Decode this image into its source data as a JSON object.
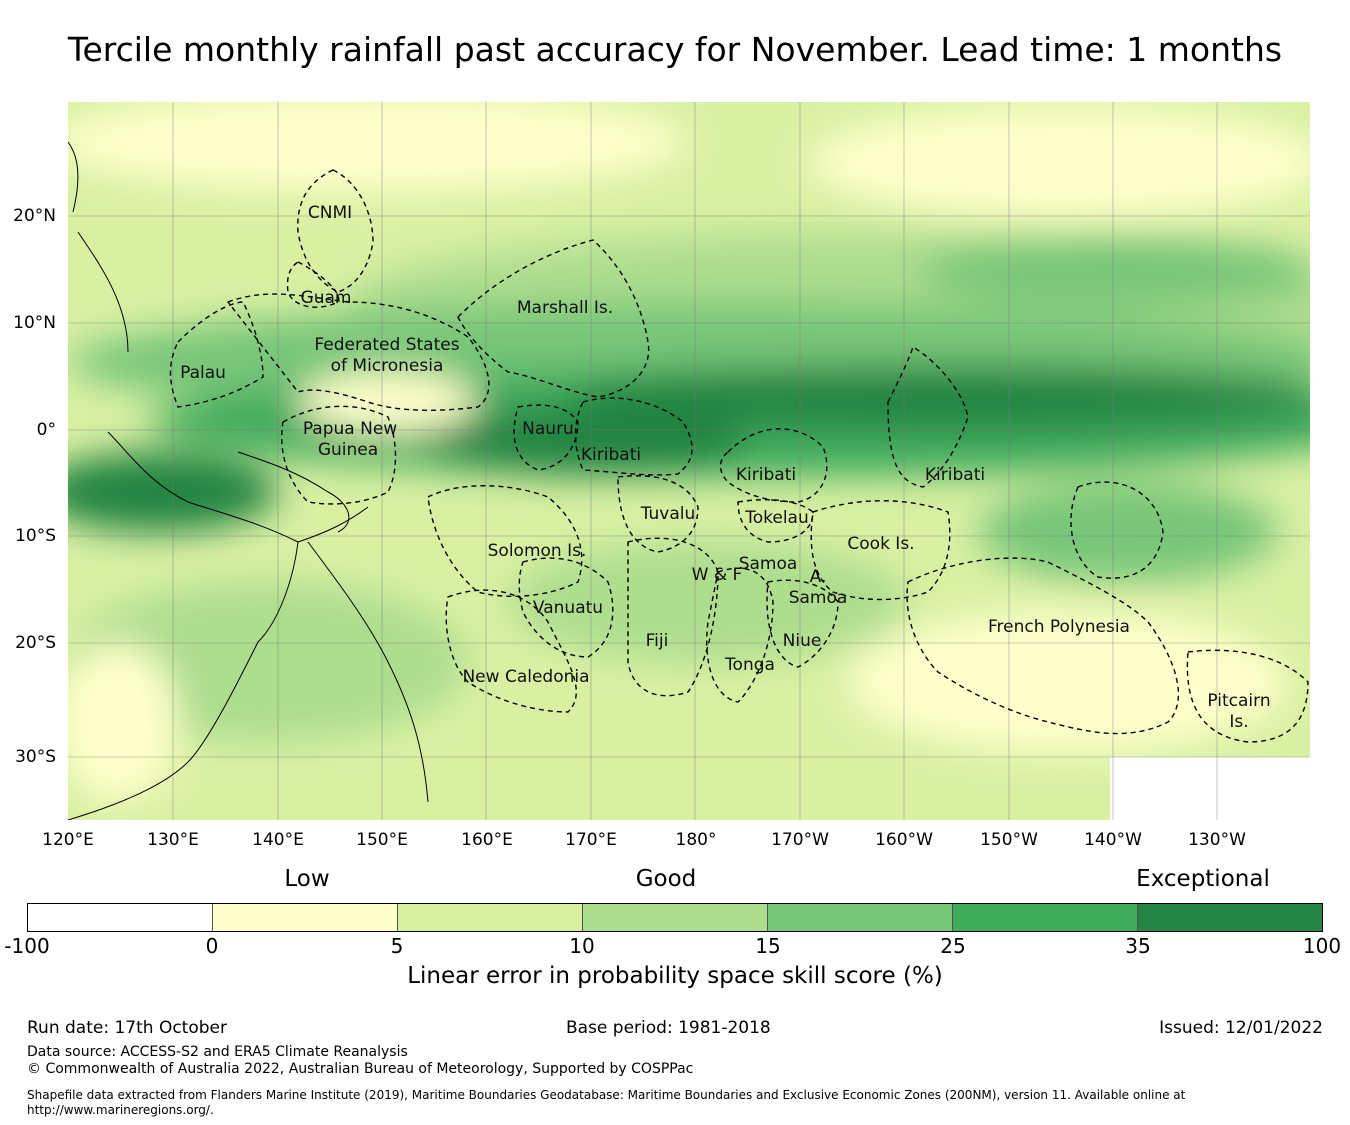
{
  "title": "Tercile monthly rainfall past accuracy for November. Lead time: 1 months",
  "map": {
    "lon_ticks": [
      "120°E",
      "130°E",
      "140°E",
      "150°E",
      "160°E",
      "170°E",
      "180°",
      "170°W",
      "160°W",
      "150°W",
      "140°W",
      "130°W"
    ],
    "lat_ticks": [
      "20°N",
      "10°N",
      "0°",
      "10°S",
      "20°S",
      "30°S"
    ],
    "regions": [
      {
        "label": "CNMI"
      },
      {
        "label": "Guam"
      },
      {
        "label": "Marshall Is."
      },
      {
        "label": "Federated States"
      },
      {
        "label": "of Micronesia"
      },
      {
        "label": "Palau"
      },
      {
        "label": "Papua New"
      },
      {
        "label": "Guinea"
      },
      {
        "label": "Nauru"
      },
      {
        "label": "Kiribati"
      },
      {
        "label": "Kiribati"
      },
      {
        "label": "Kiribati"
      },
      {
        "label": "Tuvalu"
      },
      {
        "label": "Tokelau"
      },
      {
        "label": "Cook Is."
      },
      {
        "label": "Solomon Is."
      },
      {
        "label": "Samoa"
      },
      {
        "label": "W & F"
      },
      {
        "label": "A."
      },
      {
        "label": "Samoa"
      },
      {
        "label": "Vanuatu"
      },
      {
        "label": "Fiji"
      },
      {
        "label": "Niue"
      },
      {
        "label": "Tonga"
      },
      {
        "label": "French Polynesia"
      },
      {
        "label": "New Caledonia"
      },
      {
        "label": "Pitcairn"
      },
      {
        "label": "Is."
      }
    ],
    "palette": {
      "low": "#ffffcc",
      "mid1": "#d9f0a3",
      "mid2": "#addd8e",
      "mid3": "#78c679",
      "high1": "#41ab5d",
      "high2": "#238443"
    }
  },
  "legend": {
    "categories": [
      "Low",
      "Good",
      "Exceptional"
    ],
    "colors": [
      "#ffffff",
      "#ffffcc",
      "#d9f0a3",
      "#addd8e",
      "#78c679",
      "#41ab5d",
      "#238443"
    ],
    "ticks": [
      "-100",
      "0",
      "5",
      "10",
      "15",
      "25",
      "35",
      "100"
    ],
    "label": "Linear error in probability space skill score (%)"
  },
  "footer": {
    "run_date": "Run date: 17th October",
    "base_period": "Base period: 1981-2018",
    "issued": "Issued: 12/01/2022",
    "data_source": "Data source: ACCESS-S2 and ERA5 Climate Reanalysis",
    "copyright": "© Commonwealth of Australia 2022, Australian Bureau of Meteorology, Supported by COSPPac",
    "shapefile_line1": "Shapefile data extracted from Flanders Marine Institute (2019), Maritime Boundaries Geodatabase: Maritime Boundaries and Exclusive Economic Zones (200NM), version 11. Available online at",
    "shapefile_line2": "http://www.marineregions.org/."
  }
}
